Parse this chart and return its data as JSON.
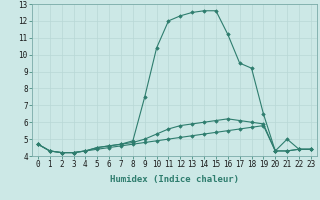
{
  "x": [
    0,
    1,
    2,
    3,
    4,
    5,
    6,
    7,
    8,
    9,
    10,
    11,
    12,
    13,
    14,
    15,
    16,
    17,
    18,
    19,
    20,
    21,
    22,
    23
  ],
  "line1": [
    4.7,
    4.3,
    4.2,
    4.2,
    4.3,
    4.4,
    4.5,
    4.6,
    4.7,
    4.8,
    4.9,
    5.0,
    5.1,
    5.2,
    5.3,
    5.4,
    5.5,
    5.6,
    5.7,
    5.8,
    4.3,
    4.3,
    4.4,
    4.4
  ],
  "line2": [
    4.7,
    4.3,
    4.2,
    4.2,
    4.3,
    4.5,
    4.6,
    4.7,
    4.8,
    5.0,
    5.3,
    5.6,
    5.8,
    5.9,
    6.0,
    6.1,
    6.2,
    6.1,
    6.0,
    5.9,
    4.3,
    4.3,
    4.4,
    4.4
  ],
  "line3": [
    4.7,
    4.3,
    4.2,
    4.2,
    4.3,
    4.5,
    4.6,
    4.7,
    4.9,
    7.5,
    10.4,
    12.0,
    12.3,
    12.5,
    12.6,
    12.6,
    11.2,
    9.5,
    9.2,
    6.5,
    4.3,
    5.0,
    4.4,
    4.4
  ],
  "color": "#2e7d6e",
  "bg_color": "#cce8e6",
  "grid_color": "#b8d8d6",
  "xlabel": "Humidex (Indice chaleur)",
  "ylim": [
    4,
    13
  ],
  "xlim": [
    -0.5,
    23.5
  ],
  "yticks": [
    4,
    5,
    6,
    7,
    8,
    9,
    10,
    11,
    12,
    13
  ],
  "xticks": [
    0,
    1,
    2,
    3,
    4,
    5,
    6,
    7,
    8,
    9,
    10,
    11,
    12,
    13,
    14,
    15,
    16,
    17,
    18,
    19,
    20,
    21,
    22,
    23
  ],
  "axis_fontsize": 5.5,
  "label_fontsize": 6.5,
  "marker": "D",
  "markersize": 1.8,
  "linewidth": 0.8
}
